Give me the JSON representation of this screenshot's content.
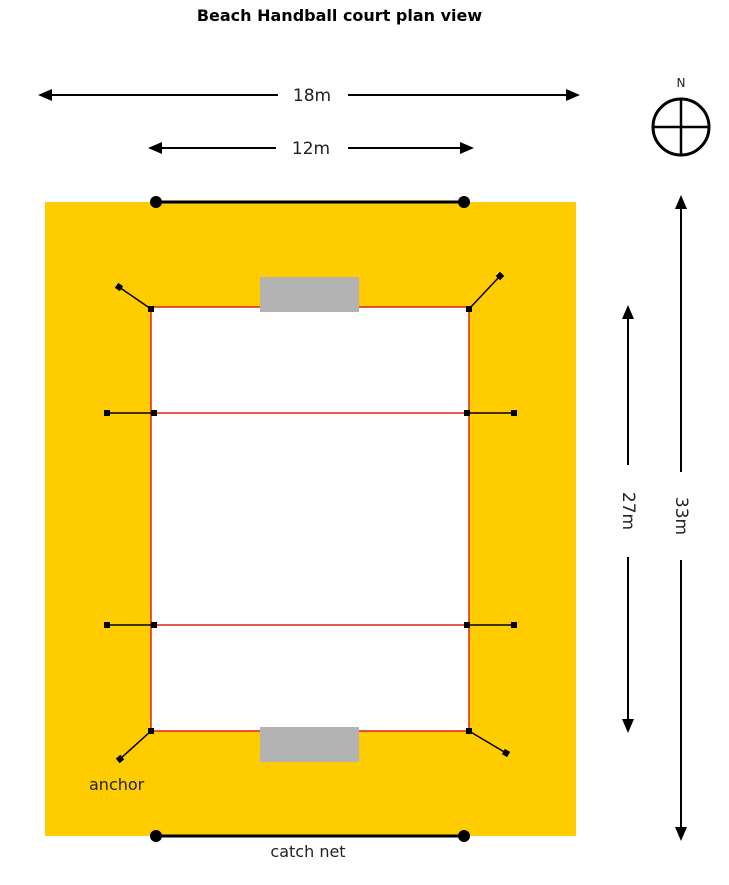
{
  "title": "Beach Handball court plan view",
  "labels": {
    "width_outer": "18m",
    "width_inner": "12m",
    "length_outer": "33m",
    "length_inner": "27m",
    "anchor": "anchor",
    "catch_net": "catch net",
    "north": "N"
  },
  "colors": {
    "sand": "#FFCC00",
    "court": "#FFFFFF",
    "boundary_line": "#E2231A",
    "goal": "#B3B3B3",
    "ink": "#000000"
  }
}
